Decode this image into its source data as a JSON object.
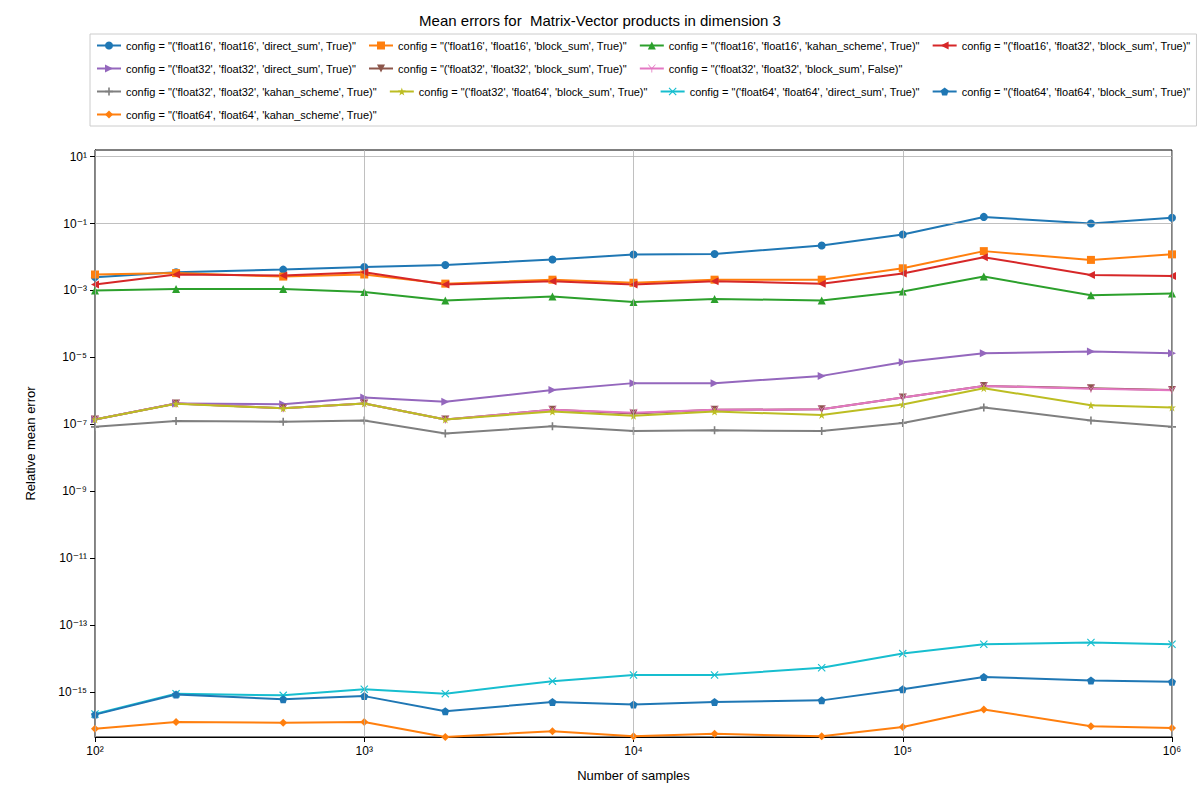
{
  "chart_data": {
    "type": "line",
    "title": "Mean errors for  Matrix-Vector products in dimension 3",
    "x_label": "Number of samples",
    "y_label": "Relative mean error",
    "log": true,
    "grid": true,
    "legend": "top",
    "x": [
      100,
      200,
      500,
      1000,
      2000,
      5000,
      10000,
      20000,
      50000,
      100000,
      200000,
      500000,
      1000000
    ],
    "xlim": [
      100,
      1000000
    ],
    "xticks": [
      {
        "value": 100,
        "label": "10²"
      },
      {
        "value": 1000,
        "label": "10³"
      },
      {
        "value": 10000,
        "label": "10⁴"
      },
      {
        "value": 100000,
        "label": "10⁵"
      },
      {
        "value": 1000000,
        "label": "10⁶"
      }
    ],
    "ylim": [
      4.5e-17,
      15.8
    ],
    "yticks": [
      {
        "value": 10,
        "label": "10¹"
      },
      {
        "value": 0.1,
        "label": "10⁻¹"
      },
      {
        "value": 0.001,
        "label": "10⁻³"
      },
      {
        "value": 1e-05,
        "label": "10⁻⁵"
      },
      {
        "value": 1e-07,
        "label": "10⁻⁷"
      },
      {
        "value": 1e-09,
        "label": "10⁻⁹"
      },
      {
        "value": 1e-11,
        "label": "10⁻¹¹"
      },
      {
        "value": 1e-13,
        "label": "10⁻¹³"
      },
      {
        "value": 1e-15,
        "label": "10⁻¹⁵"
      }
    ],
    "series": [
      {
        "name": "config = \"('float16', 'float16', 'direct_sum', True)\"",
        "color": "#1f77b4",
        "marker": "circle",
        "values": [
          0.0025,
          0.0035,
          0.0042,
          0.005,
          0.0058,
          0.0084,
          0.0119,
          0.0123,
          0.022,
          0.047,
          0.158,
          0.1,
          0.15
        ]
      },
      {
        "name": "config = \"('float16', 'float16', 'block_sum', True)\"",
        "color": "#ff7f0e",
        "marker": "square",
        "values": [
          0.003,
          0.0033,
          0.0026,
          0.003,
          0.0016,
          0.0021,
          0.0017,
          0.0021,
          0.0021,
          0.0046,
          0.015,
          0.0082,
          0.012
        ]
      },
      {
        "name": "config = \"('float16', 'float16', 'kahan_scheme', True)\"",
        "color": "#2ca02c",
        "marker": "triangle",
        "values": [
          0.001,
          0.0011,
          0.0011,
          0.0009,
          0.0005,
          0.00066,
          0.00045,
          0.00056,
          0.0005,
          0.00093,
          0.0026,
          0.00072,
          0.00081
        ]
      },
      {
        "name": "config = \"('float16', 'float32', 'block_sum', True)\"",
        "color": "#d62728",
        "marker": "triangle_left",
        "values": [
          0.0015,
          0.003,
          0.0028,
          0.0035,
          0.0015,
          0.0019,
          0.0015,
          0.0019,
          0.0016,
          0.0032,
          0.0099,
          0.0029,
          0.0027
        ]
      },
      {
        "name": "config = \"('float32', 'float32', 'direct_sum', True)\"",
        "color": "#9467bd",
        "marker": "triangle_right",
        "values": [
          1.4e-07,
          4.2e-07,
          4e-07,
          6.3e-07,
          4.7e-07,
          1.06e-06,
          1.7e-06,
          1.7e-06,
          2.8e-06,
          7.1e-06,
          1.33e-05,
          1.5e-05,
          1.33e-05
        ]
      },
      {
        "name": "config = \"('float32', 'float32', 'block_sum', True)\"",
        "color": "#8c564b",
        "marker": "triangle_down",
        "values": [
          1.4e-07,
          4.2e-07,
          3e-07,
          4.2e-07,
          1.4e-07,
          2.7e-07,
          2.1e-07,
          2.7e-07,
          2.8e-07,
          6.3e-07,
          1.4e-06,
          1.2e-06,
          1.06e-06
        ]
      },
      {
        "name": "config = \"('float32', 'float32', 'block_sum', False)\"",
        "color": "#e377c2",
        "marker": "tri_down",
        "values": [
          1.4e-07,
          4.2e-07,
          3e-07,
          4.2e-07,
          1.4e-07,
          2.7e-07,
          2.2e-07,
          2.7e-07,
          2.8e-07,
          6.3e-07,
          1.4e-06,
          1.15e-06,
          1.05e-06
        ]
      },
      {
        "name": "config = \"('float32', 'float32', 'kahan_scheme', True)\"",
        "color": "#7f7f7f",
        "marker": "plus",
        "values": [
          8.4e-08,
          1.25e-07,
          1.2e-07,
          1.3e-07,
          5.3e-08,
          8.7e-08,
          6.3e-08,
          6.6e-08,
          6.3e-08,
          1.1e-07,
          3.2e-07,
          1.3e-07,
          8.4e-08
        ]
      },
      {
        "name": "config = \"('float32', 'float64', 'block_sum', True)\"",
        "color": "#bcbd22",
        "marker": "star",
        "values": [
          1.4e-07,
          4.1e-07,
          3e-07,
          4.2e-07,
          1.4e-07,
          2.4e-07,
          1.8e-07,
          2.4e-07,
          1.9e-07,
          3.9e-07,
          1.2e-06,
          3.7e-07,
          3.2e-07
        ]
      },
      {
        "name": "config = \"('float64', 'float64', 'direct_sum', True)\"",
        "color": "#17becf",
        "marker": "x",
        "values": [
          2.2e-16,
          8.9e-16,
          7.9e-16,
          1.2e-15,
          8.9e-16,
          2.1e-15,
          3.2e-15,
          3.2e-15,
          5.3e-15,
          1.4e-14,
          2.66e-14,
          3e-14,
          2.66e-14
        ]
      },
      {
        "name": "config = \"('float64', 'float64', 'block_sum', True)\"",
        "color": "#1f77b4",
        "marker": "pentagon",
        "values": [
          2.1e-16,
          8.4e-16,
          6e-16,
          7.5e-16,
          2.65e-16,
          5e-16,
          4.2e-16,
          5e-16,
          5.6e-16,
          1.2e-15,
          2.8e-15,
          2.2e-15,
          2e-15
        ]
      },
      {
        "name": "config = \"('float64', 'float64', 'kahan_scheme', True)\"",
        "color": "#ff7f0e",
        "marker": "diamond",
        "values": [
          7.9e-17,
          1.26e-16,
          1.2e-16,
          1.26e-16,
          4.5e-17,
          6.7e-17,
          4.7e-17,
          5.6e-17,
          4.7e-17,
          8.9e-17,
          3e-16,
          9.4e-17,
          8.4e-17
        ]
      }
    ]
  }
}
